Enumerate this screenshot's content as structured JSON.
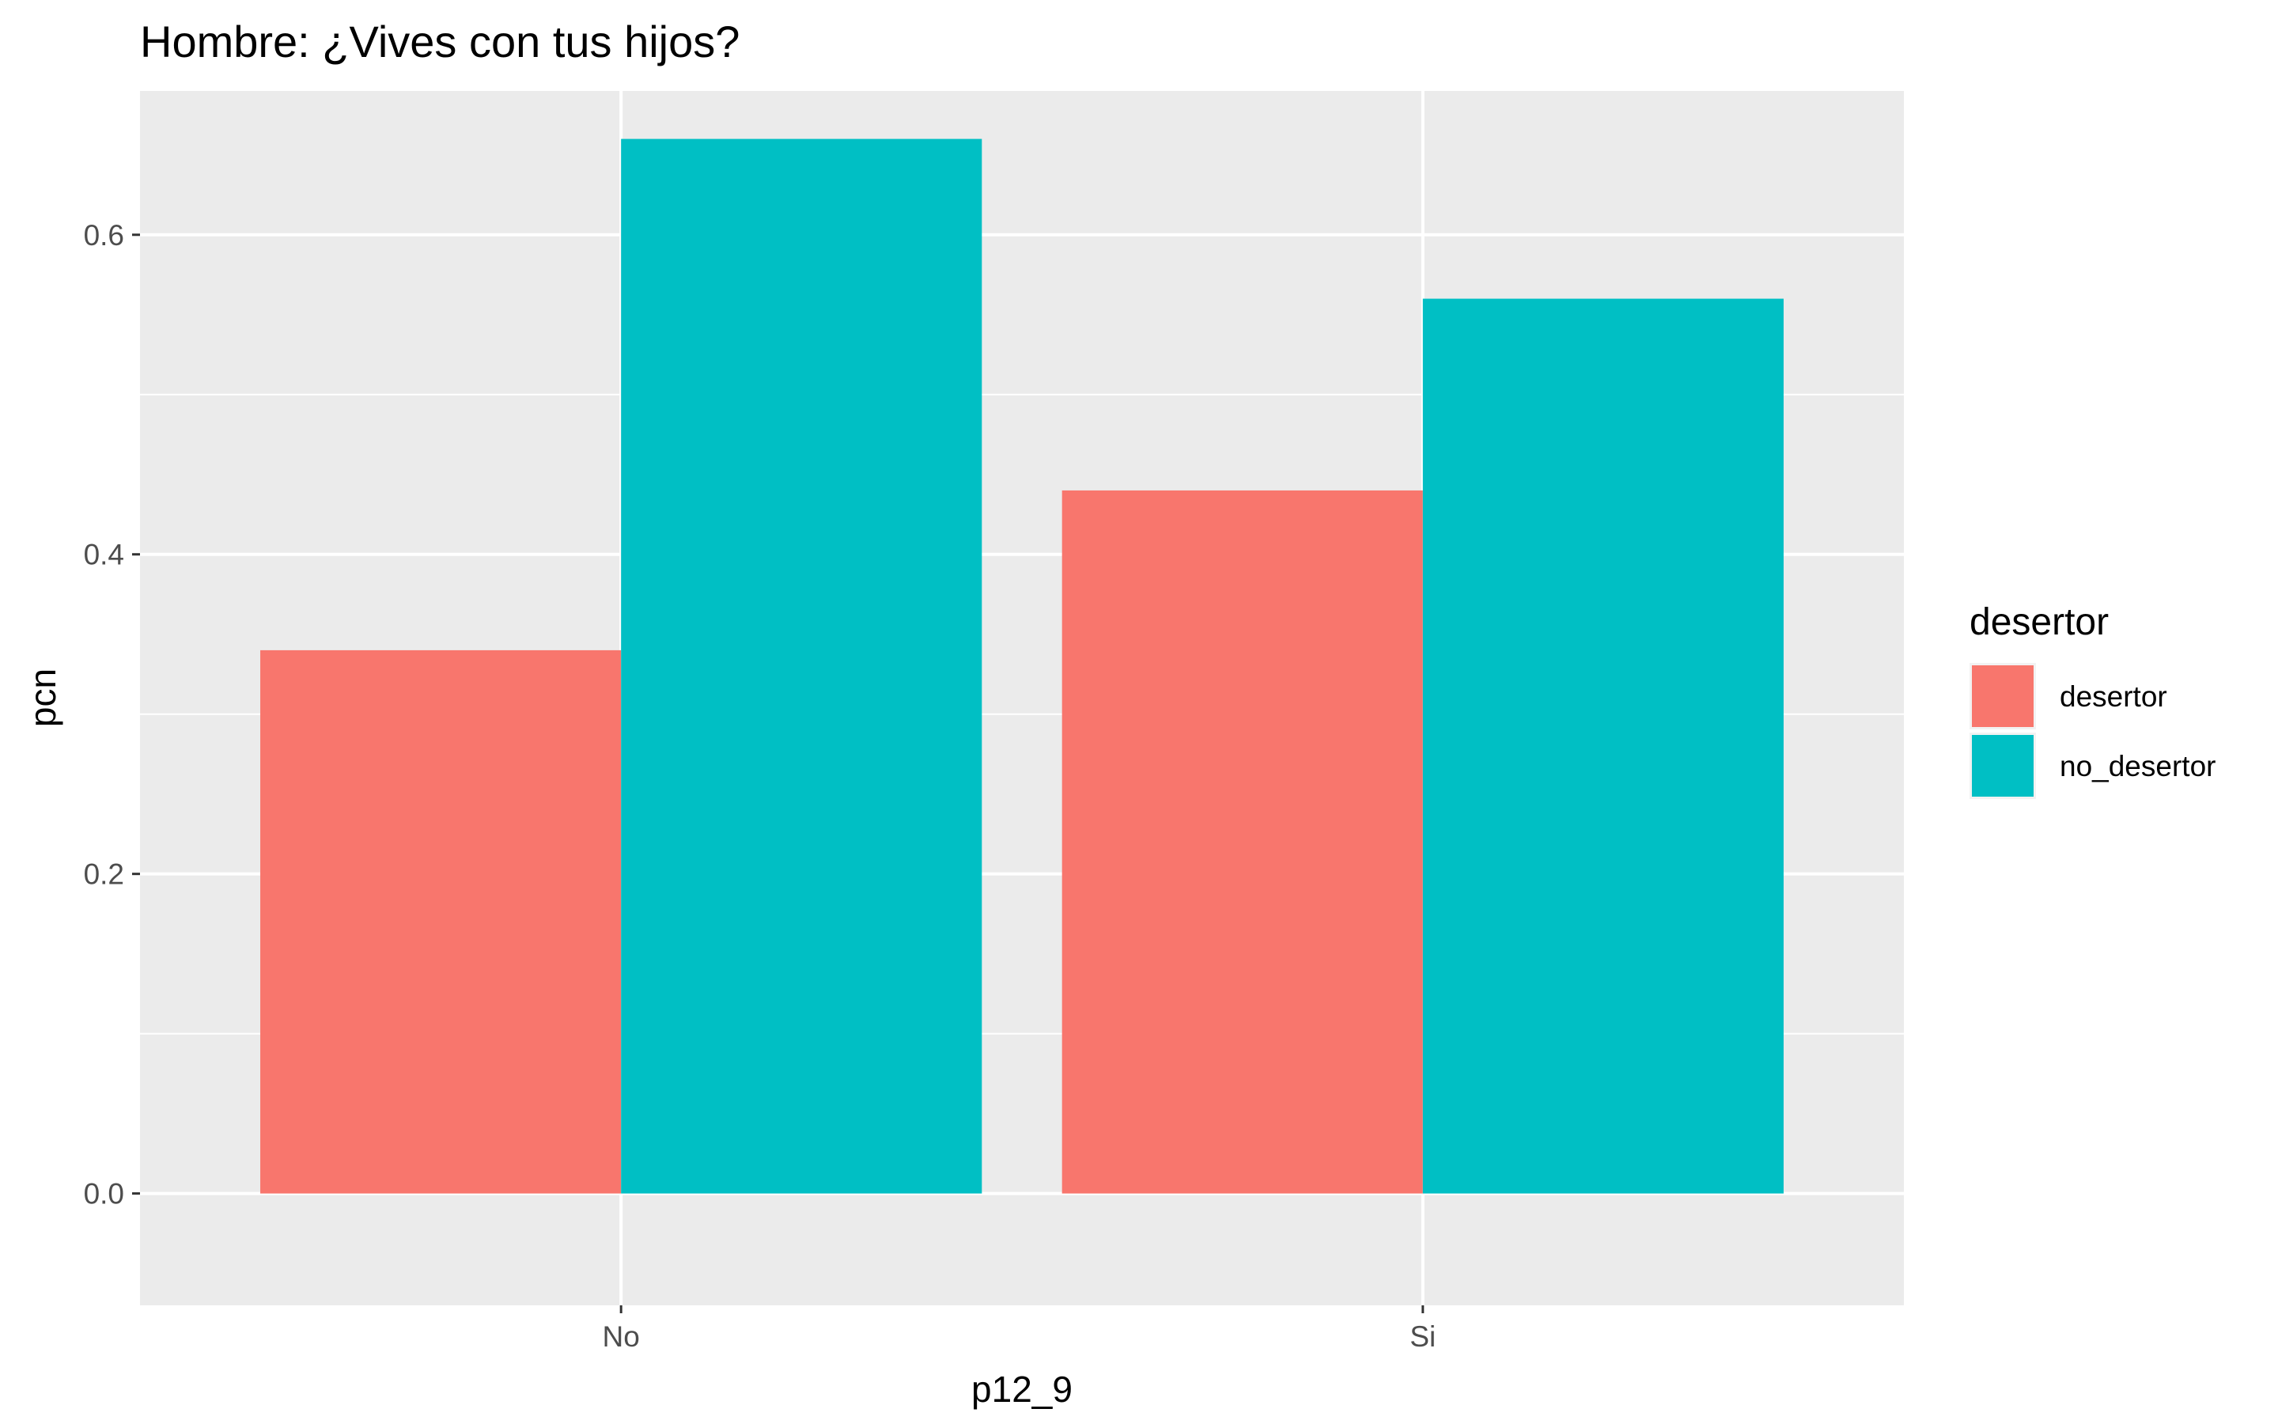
{
  "chart_data": {
    "type": "bar",
    "title": "Hombre: ¿Vives con tus hijos?",
    "xlabel": "p12_9",
    "ylabel": "pcn",
    "categories": [
      "No",
      "Si"
    ],
    "series": [
      {
        "name": "desertor",
        "values": [
          0.34,
          0.44
        ],
        "color": "#F8766D"
      },
      {
        "name": "no_desertor",
        "values": [
          0.66,
          0.56
        ],
        "color": "#00BFC4"
      }
    ],
    "ylim": [
      -0.07,
      0.69
    ],
    "yticks": [
      0.0,
      0.2,
      0.4,
      0.6
    ],
    "ytick_labels": [
      "0.0",
      "0.2",
      "0.4",
      "0.6"
    ],
    "grid": true,
    "legend": {
      "title": "desertor",
      "placement": "right"
    },
    "panel_background": "#EBEBEB",
    "grid_color": "#FFFFFF"
  }
}
